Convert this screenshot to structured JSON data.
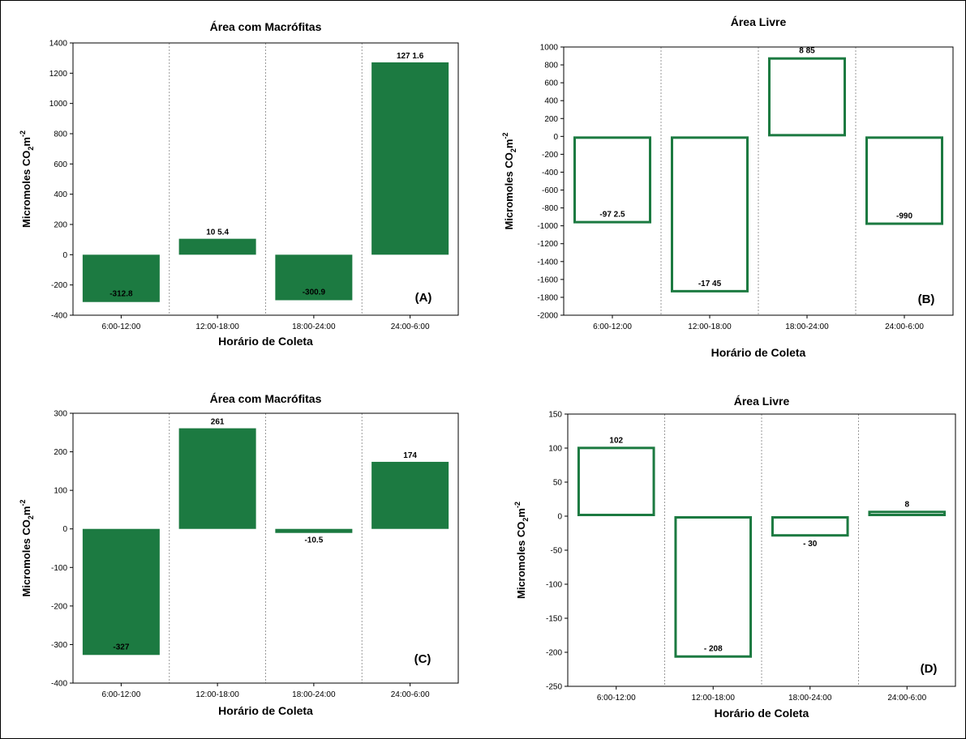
{
  "chart_data": [
    {
      "type": "bar",
      "title": "Área com Macrófitas",
      "xlabel": "Horário de Coleta",
      "ylabel": "Micromoles CO",
      "ylabel_sub": "2",
      "ylabel_tail": "m",
      "ylabel_sup": "-2",
      "panel_label": "(A)",
      "style": "filled",
      "color": "#1c7a41",
      "categories": [
        "6:00-12:00",
        "12:00-18:00",
        "18:00-24:00",
        "24:00-6:00"
      ],
      "values": [
        -312.8,
        105.4,
        -300.9,
        1271.6
      ],
      "value_labels": [
        "-312.8",
        "10 5.4",
        "-300.9",
        "127 1.6"
      ],
      "ylim": [
        -400,
        1400
      ],
      "yticks": [
        -400,
        -200,
        0,
        200,
        400,
        600,
        800,
        1000,
        1200,
        1400
      ],
      "grid": "vertical-dotted"
    },
    {
      "type": "bar",
      "title": "Área Livre",
      "xlabel": "Horário de Coleta",
      "ylabel": "Micromoles CO",
      "ylabel_sub": "2",
      "ylabel_tail": "m",
      "ylabel_sup": "-2",
      "panel_label": "(B)",
      "style": "outline",
      "color": "#1c7a41",
      "categories": [
        "6:00-12:00",
        "12:00-18:00",
        "18:00-24:00",
        "24:00-6:00"
      ],
      "values": [
        -972.5,
        -1745,
        885,
        -990
      ],
      "value_labels": [
        "-97 2.5",
        "-17 45",
        "8 85",
        "-990"
      ],
      "ylim": [
        -2000,
        1000
      ],
      "yticks": [
        -2000,
        -1800,
        -1600,
        -1400,
        -1200,
        -1000,
        -800,
        -600,
        -400,
        -200,
        0,
        200,
        400,
        600,
        800,
        1000
      ],
      "grid": "vertical-dotted"
    },
    {
      "type": "bar",
      "title": "Área com Macrófitas",
      "xlabel": "Horário de Coleta",
      "ylabel": "Micromoles CO",
      "ylabel_sub": "2",
      "ylabel_tail": "m",
      "ylabel_sup": "-2",
      "panel_label": "(C)",
      "style": "filled",
      "color": "#1c7a41",
      "categories": [
        "6:00-12:00",
        "12:00-18:00",
        "18:00-24:00",
        "24:00-6:00"
      ],
      "values": [
        -327,
        261,
        -10.5,
        174
      ],
      "value_labels": [
        "-327",
        "261",
        "-10.5",
        "174"
      ],
      "ylim": [
        -400,
        300
      ],
      "yticks": [
        -400,
        -300,
        -200,
        -100,
        0,
        100,
        200,
        300
      ],
      "grid": "vertical-dotted"
    },
    {
      "type": "bar",
      "title": "Área Livre",
      "xlabel": "Horário de Coleta",
      "ylabel": "Micromoles CO",
      "ylabel_sub": "2",
      "ylabel_tail": "m",
      "ylabel_sup": "-2",
      "panel_label": "(D)",
      "style": "outline",
      "color": "#1c7a41",
      "categories": [
        "6:00-12:00",
        "12:00-18:00",
        "18:00-24:00",
        "24:00-6:00"
      ],
      "values": [
        102,
        -208,
        -30,
        8
      ],
      "value_labels": [
        "102",
        "- 208",
        "- 30",
        "8"
      ],
      "ylim": [
        -250,
        150
      ],
      "yticks": [
        -250,
        -200,
        -150,
        -100,
        -50,
        0,
        50,
        100,
        150
      ],
      "grid": "vertical-dotted"
    }
  ]
}
